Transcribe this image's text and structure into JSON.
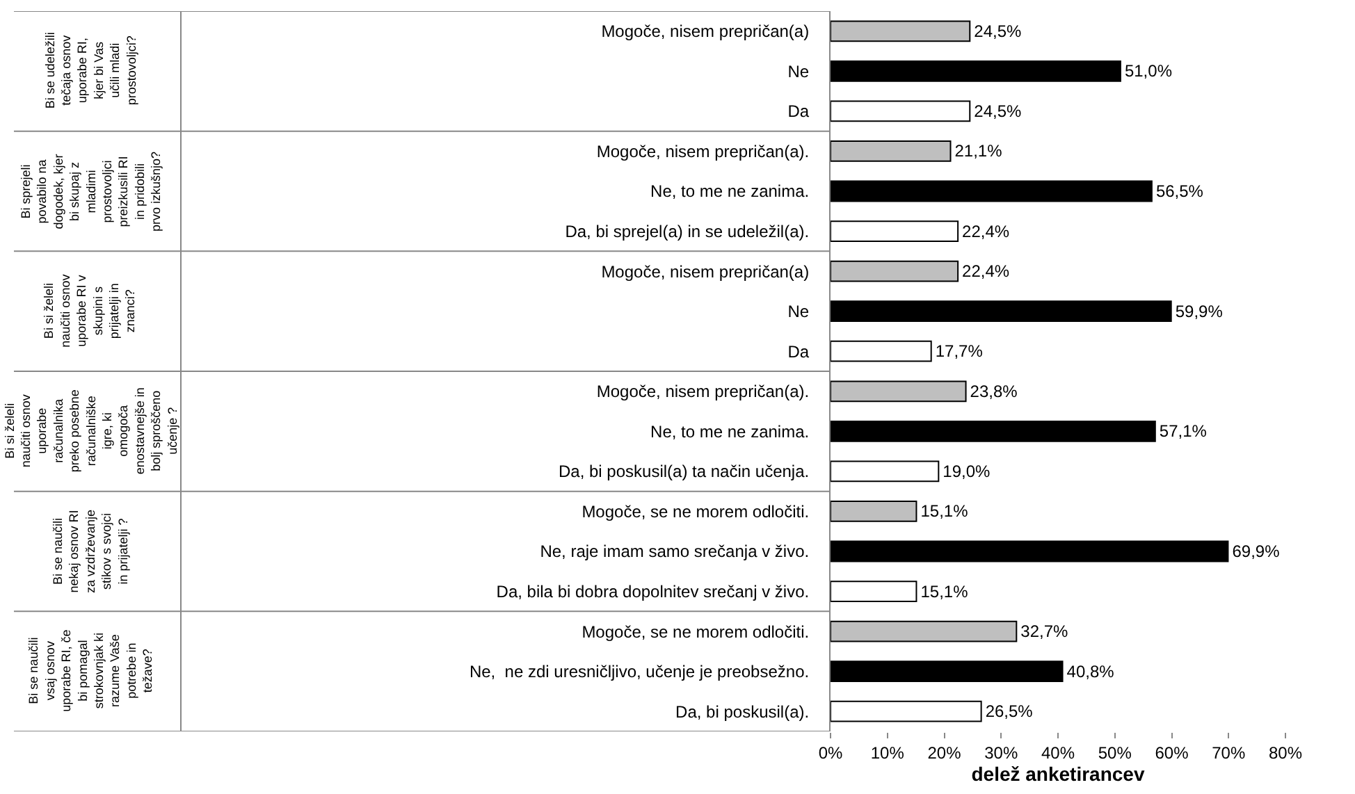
{
  "chart_data": {
    "type": "bar",
    "orientation": "horizontal",
    "xlabel": "delež anketirancev",
    "categories": [
      "Mogoče, nisem prepričan(a)",
      "Ne",
      "Da",
      "Mogoče, nisem prepričan(a).",
      "Ne, to me ne zanima.",
      "Da, bi sprejel(a) in se udeležil(a).",
      "Mogoče, nisem prepričan(a)",
      "Ne",
      "Da",
      "Mogoče, nisem prepričan(a).",
      "Ne, to me ne zanima.",
      "Da, bi poskusil(a) ta način učenja.",
      "Mogoče, se ne morem odločiti.",
      "Ne, raje imam samo srečanja v živo.",
      "Da, bila bi dobra dopolnitev srečanj v živo.",
      "Mogoče, se ne morem odločiti.",
      "Ne,  ne zdi uresničljivo, učenje je preobsežno.",
      "Da, bi poskusil(a)."
    ],
    "values": [
      24.5,
      51.0,
      24.5,
      21.1,
      56.5,
      22.4,
      22.4,
      59.9,
      17.7,
      23.8,
      57.1,
      19.0,
      15.1,
      69.9,
      15.1,
      32.7,
      40.8,
      26.5
    ],
    "value_labels": [
      "24,5%",
      "51,0%",
      "24,5%",
      "21,1%",
      "56,5%",
      "22,4%",
      "22,4%",
      "59,9%",
      "17,7%",
      "23,8%",
      "57,1%",
      "19,0%",
      "15,1%",
      "69,9%",
      "15,1%",
      "32,7%",
      "40,8%",
      "26,5%"
    ],
    "colors": [
      "#bfbfbf",
      "#000000",
      "#ffffff",
      "#bfbfbf",
      "#000000",
      "#ffffff",
      "#bfbfbf",
      "#000000",
      "#ffffff",
      "#bfbfbf",
      "#000000",
      "#ffffff",
      "#bfbfbf",
      "#000000",
      "#ffffff",
      "#bfbfbf",
      "#000000",
      "#ffffff"
    ],
    "xlim": [
      0,
      80
    ],
    "xticks": [
      {
        "value": 0,
        "label": "0%"
      },
      {
        "value": 10,
        "label": "10%"
      },
      {
        "value": 20,
        "label": "20%"
      },
      {
        "value": 30,
        "label": "30%"
      },
      {
        "value": 40,
        "label": "40%"
      },
      {
        "value": 50,
        "label": "50%"
      },
      {
        "value": 60,
        "label": "60%"
      },
      {
        "value": 70,
        "label": "70%"
      },
      {
        "value": 80,
        "label": "80%"
      }
    ],
    "annotations": [
      "Bi se udeležili tečaja osnov uporabe RI, kjer bi Vas učili mladi prostovoljci?",
      "Bi sprejeli povabilo na dogodek, kjer bi skupaj z mladimi prostovoljci preizkusili RI in pridobili prvo izkušnjo?",
      "Bi si želeli naučiti osnov uporabe RI v skupini s prijatelji in znanci?",
      "Bi si želeli naučiti osnov uporabe računalnika preko posebne računalniške igre, ki omogoča enostavnejše in bolj sproščeno učenje ?",
      "Bi se naučili nekaj osnov RI za vzdrževanje stikov s svojci in prijatelji ?",
      "Bi se naučili vsaj osnov uporabe RI, če bi pomagal strokovnjak ki razume Vaše potrebe in težave?"
    ]
  }
}
